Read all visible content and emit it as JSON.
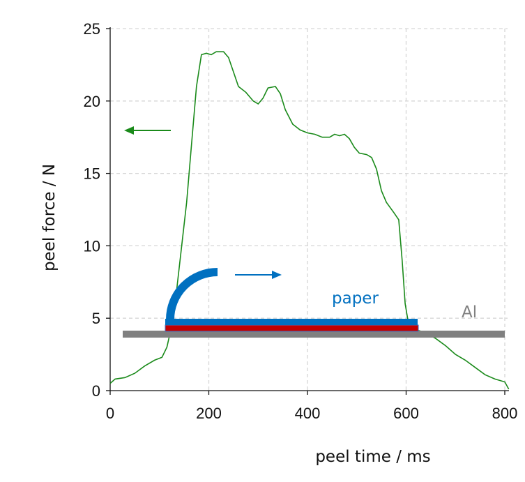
{
  "chart_data": {
    "type": "line",
    "title": "",
    "xlabel": "peel time / ms",
    "ylabel": "peel force / N",
    "xlim": [
      0,
      810
    ],
    "ylim": [
      0,
      25
    ],
    "xticks": [
      0,
      200,
      400,
      600,
      800
    ],
    "yticks": [
      0,
      5,
      10,
      15,
      20,
      25
    ],
    "grid": true,
    "series": [
      {
        "color": "#1a8a1a",
        "x": [
          0,
          10,
          30,
          50,
          70,
          90,
          105,
          115,
          125,
          135,
          145,
          155,
          165,
          175,
          185,
          195,
          205,
          215,
          230,
          240,
          250,
          260,
          275,
          290,
          300,
          310,
          320,
          335,
          345,
          355,
          370,
          385,
          400,
          415,
          430,
          445,
          455,
          465,
          475,
          485,
          495,
          505,
          520,
          530,
          540,
          550,
          560,
          575,
          585,
          592,
          598,
          605,
          620,
          640,
          660,
          680,
          700,
          720,
          740,
          760,
          780,
          800,
          808
        ],
        "y": [
          0.5,
          0.8,
          0.9,
          1.2,
          1.7,
          2.1,
          2.3,
          3.0,
          4.5,
          7.0,
          10.0,
          13.0,
          17.0,
          21.0,
          23.2,
          23.3,
          23.2,
          23.4,
          23.4,
          23.0,
          22.0,
          21.0,
          20.6,
          20.0,
          19.8,
          20.2,
          20.9,
          21.0,
          20.5,
          19.4,
          18.4,
          18.0,
          17.8,
          17.7,
          17.5,
          17.5,
          17.7,
          17.6,
          17.7,
          17.4,
          16.8,
          16.4,
          16.3,
          16.1,
          15.3,
          13.8,
          13.0,
          12.3,
          11.8,
          9.0,
          6.0,
          4.6,
          4.2,
          4.0,
          3.6,
          3.1,
          2.5,
          2.1,
          1.6,
          1.1,
          0.8,
          0.6,
          0.1
        ]
      }
    ],
    "annotations": {
      "paper_label": "paper",
      "al_label": "Al",
      "paper_color": "#0070c0",
      "adhesive_color": "#c00000",
      "al_color": "#808080",
      "force_arrow_color": "#1a8a1a"
    }
  }
}
